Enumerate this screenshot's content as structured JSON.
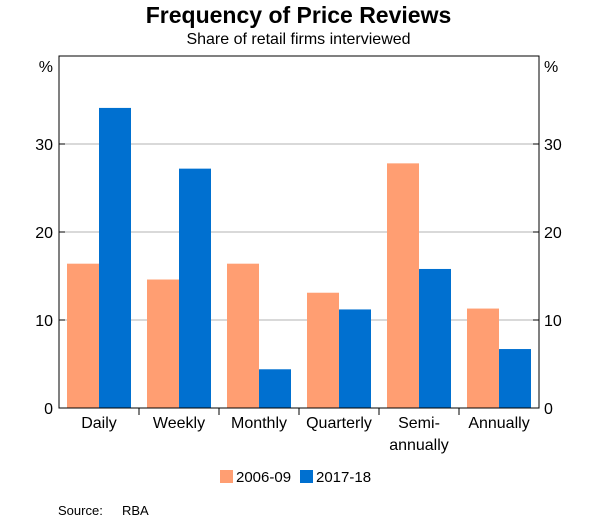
{
  "title": "Frequency of Price Reviews",
  "subtitle": "Share of retail firms interviewed",
  "source_label": "Source:",
  "source_value": "RBA",
  "chart_data": {
    "type": "bar",
    "title": "Frequency of Price Reviews",
    "subtitle": "Share of retail firms interviewed",
    "unit_left": "%",
    "unit_right": "%",
    "categories": [
      [
        "Daily"
      ],
      [
        "Weekly"
      ],
      [
        "Monthly"
      ],
      [
        "Quarterly"
      ],
      [
        "Semi-",
        "annually"
      ],
      [
        "Annually"
      ]
    ],
    "series": [
      {
        "name": "2006-09",
        "color": "#ff9e72",
        "values": [
          16.4,
          14.6,
          16.4,
          13.1,
          27.8,
          11.3
        ]
      },
      {
        "name": "2017-18",
        "color": "#0070d0",
        "values": [
          34.1,
          27.2,
          4.4,
          11.2,
          15.8,
          6.7
        ]
      }
    ],
    "ylim": [
      0,
      40
    ],
    "yticks": [
      0,
      10,
      20,
      30
    ],
    "grid": true,
    "legend_position": "bottom"
  }
}
